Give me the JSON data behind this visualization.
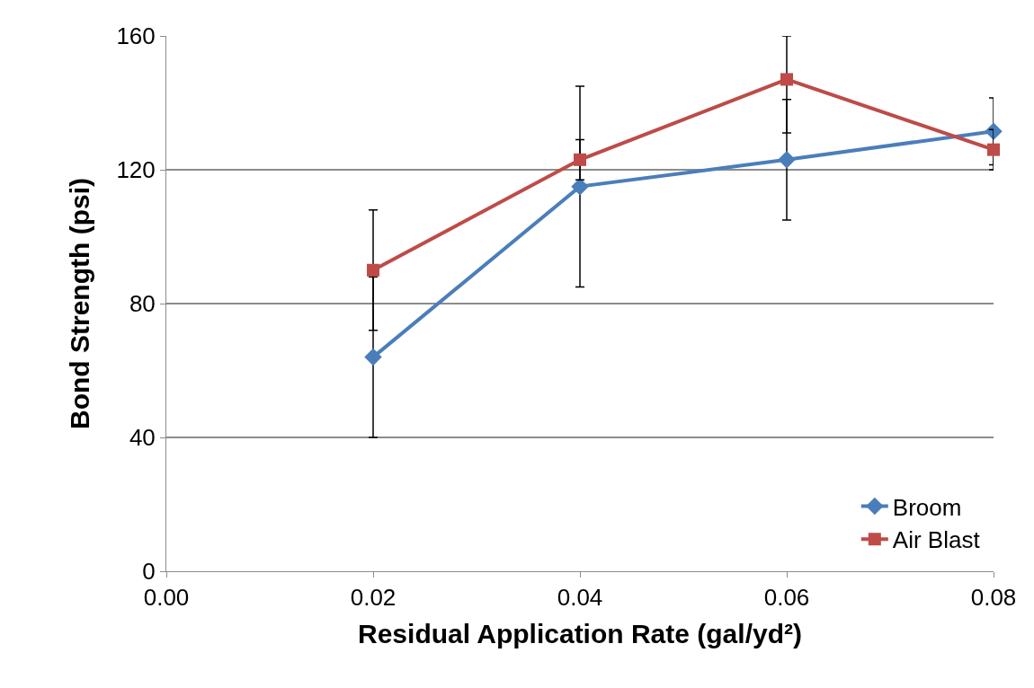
{
  "chart_data": {
    "type": "line",
    "xlabel": "Residual Application Rate (gal/yd²)",
    "ylabel": "Bond Strength (psi)",
    "x": [
      0.02,
      0.04,
      0.06,
      0.08
    ],
    "series": [
      {
        "name": "Broom",
        "color": "#4a7ebb",
        "marker": "diamond",
        "values": [
          64,
          115,
          123,
          131.5
        ],
        "errors": [
          24,
          30,
          18,
          10
        ]
      },
      {
        "name": "Air Blast",
        "color": "#be4b48",
        "marker": "square",
        "values": [
          90,
          123,
          147,
          126
        ],
        "errors": [
          18,
          6,
          [
            131,
            160
          ],
          6
        ]
      }
    ],
    "xlim": [
      0,
      0.08
    ],
    "xticks": [
      {
        "value": 0,
        "label": "0.00"
      },
      {
        "value": 0.02,
        "label": "0.02"
      },
      {
        "value": 0.04,
        "label": "0.04"
      },
      {
        "value": 0.06,
        "label": "0.06"
      },
      {
        "value": 0.08,
        "label": "0.08"
      }
    ],
    "ylim": [
      0,
      160
    ],
    "yticks": [
      0,
      40,
      80,
      120,
      160
    ],
    "grid": "y",
    "legend": "bottom right",
    "line_style": "solid"
  }
}
